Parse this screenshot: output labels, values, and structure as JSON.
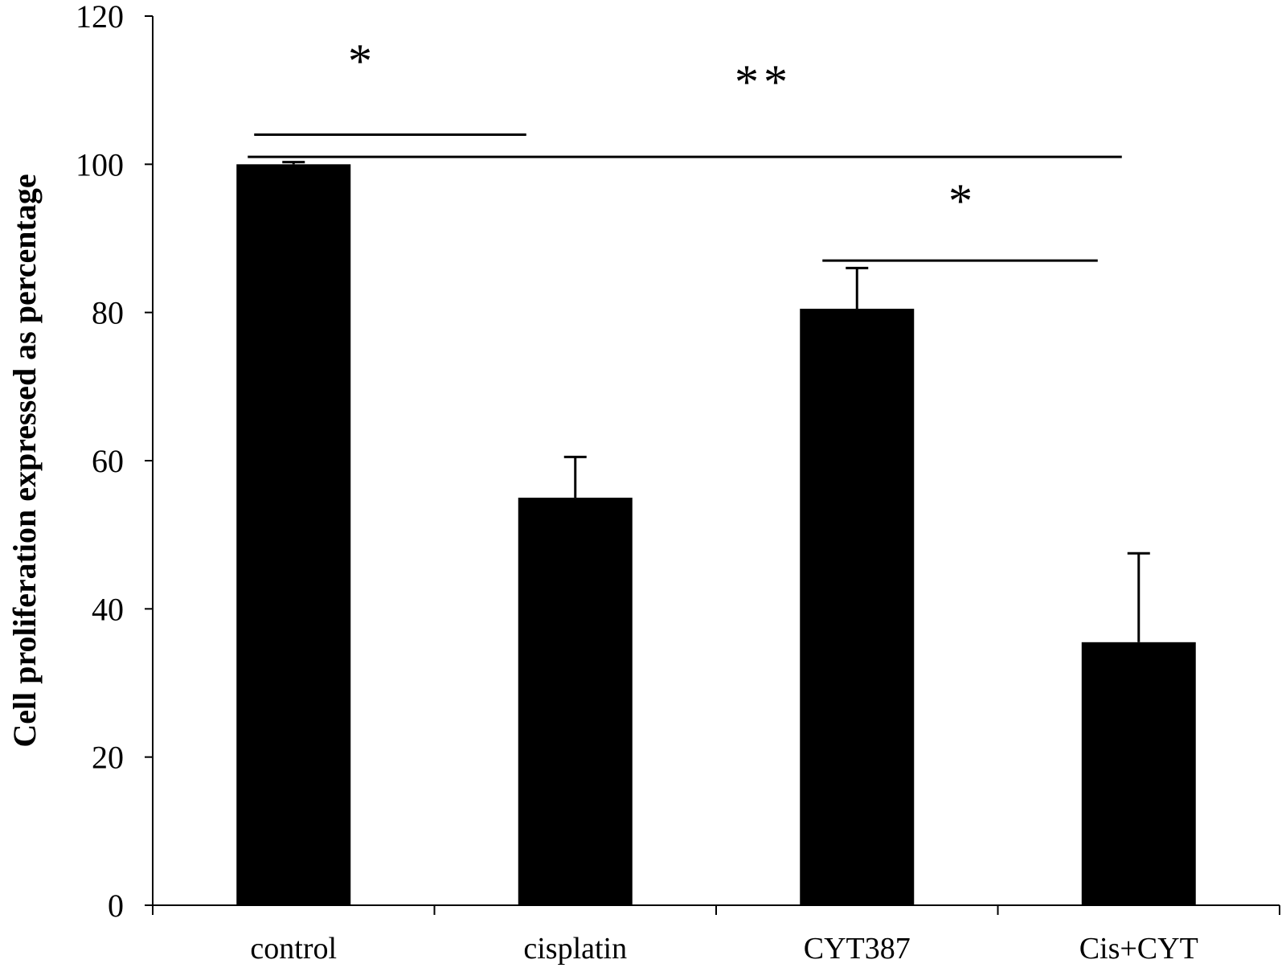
{
  "chart_data": {
    "type": "bar",
    "title": "",
    "xlabel": "",
    "ylabel": "Cell proliferation  expressed as percentage",
    "ylim": [
      0,
      120
    ],
    "yticks": [
      0,
      20,
      40,
      60,
      80,
      100,
      120
    ],
    "categories": [
      "control",
      "cisplatin",
      "CYT387",
      "Cis+CYT"
    ],
    "values": [
      100,
      55,
      80.5,
      35.5
    ],
    "errors": [
      0.3,
      5.5,
      5.5,
      12
    ],
    "bar_color": "#000000",
    "significance": [
      {
        "from": 0,
        "to": 1,
        "label": "*",
        "y": 104
      },
      {
        "from": 0,
        "to": 3,
        "label": "**",
        "y": 101
      },
      {
        "from": 2,
        "to": 3,
        "label": "*",
        "y": 87
      }
    ]
  }
}
